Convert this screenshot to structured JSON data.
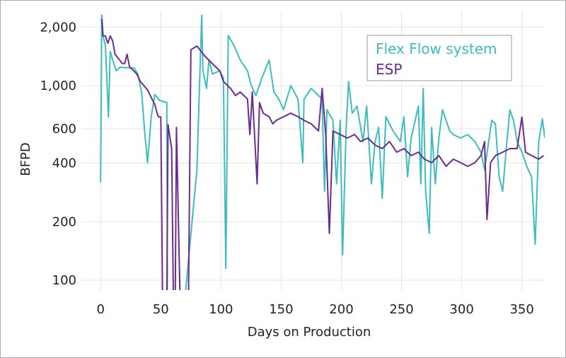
{
  "chart_data": {
    "type": "line",
    "title": "",
    "xlabel": "Days on Production",
    "ylabel": "BFPD",
    "xlim": [
      -16,
      369
    ],
    "ylim": [
      89,
      2430
    ],
    "yscale": "log",
    "grid": true,
    "legend_position": "top-right",
    "x_ticks": [
      0,
      50,
      100,
      150,
      200,
      250,
      300,
      350
    ],
    "x_tick_labels": [
      "0",
      "50",
      "100",
      "150",
      "200",
      "250",
      "300",
      "350"
    ],
    "y_ticks": [
      100,
      200,
      400,
      600,
      1000,
      2000
    ],
    "y_tick_labels": [
      "100",
      "200",
      "400",
      "600",
      "1,000",
      "2,000"
    ],
    "series": [
      {
        "name": "Flex Flow system",
        "color": "#3dbdbd",
        "points": [
          [
            0,
            318
          ],
          [
            1,
            2300
          ],
          [
            2,
            1812
          ],
          [
            4,
            1600
          ],
          [
            6.5,
            690
          ],
          [
            8,
            1500
          ],
          [
            11,
            1296
          ],
          [
            13,
            1192
          ],
          [
            16,
            1243
          ],
          [
            28,
            1230
          ],
          [
            31,
            1140
          ],
          [
            34,
            930
          ],
          [
            37,
            540
          ],
          [
            39,
            402
          ],
          [
            42,
            692
          ],
          [
            45,
            900
          ],
          [
            49,
            840
          ],
          [
            55,
            818
          ],
          [
            55.5,
            80
          ],
          [
            70,
            80
          ],
          [
            80,
            369
          ],
          [
            84,
            2300
          ],
          [
            85,
            1192
          ],
          [
            88,
            967
          ],
          [
            90,
            1352
          ],
          [
            93,
            1150
          ],
          [
            99,
            1192
          ],
          [
            102,
            1096
          ],
          [
            104,
            115
          ],
          [
            106,
            1812
          ],
          [
            111,
            1598
          ],
          [
            116,
            1352
          ],
          [
            122,
            1192
          ],
          [
            125,
            1008
          ],
          [
            129,
            889
          ],
          [
            134,
            1096
          ],
          [
            140,
            1352
          ],
          [
            144,
            927
          ],
          [
            148,
            853
          ],
          [
            152,
            752
          ],
          [
            158,
            1000
          ],
          [
            164,
            853
          ],
          [
            168,
            402
          ],
          [
            169,
            853
          ],
          [
            175,
            967
          ],
          [
            181,
            889
          ],
          [
            184,
            853
          ],
          [
            186,
            287
          ],
          [
            188,
            752
          ],
          [
            193,
            664
          ],
          [
            196,
            313
          ],
          [
            199,
            664
          ],
          [
            201,
            135
          ],
          [
            204,
            610
          ],
          [
            206,
            1050
          ],
          [
            209,
            722
          ],
          [
            213,
            785
          ],
          [
            218,
            516
          ],
          [
            221,
            785
          ],
          [
            225,
            313
          ],
          [
            228,
            516
          ],
          [
            231,
            610
          ],
          [
            234,
            264
          ],
          [
            237,
            692
          ],
          [
            243,
            585
          ],
          [
            249,
            516
          ],
          [
            252,
            692
          ],
          [
            255,
            340
          ],
          [
            258,
            538
          ],
          [
            264,
            785
          ],
          [
            266,
            313
          ],
          [
            268,
            967
          ],
          [
            270,
            287
          ],
          [
            273,
            174
          ],
          [
            275,
            610
          ],
          [
            278,
            313
          ],
          [
            281,
            538
          ],
          [
            284,
            752
          ],
          [
            287,
            664
          ],
          [
            290,
            585
          ],
          [
            293,
            561
          ],
          [
            299,
            538
          ],
          [
            305,
            561
          ],
          [
            311,
            516
          ],
          [
            316,
            455
          ],
          [
            319,
            369
          ],
          [
            325,
            664
          ],
          [
            328,
            636
          ],
          [
            331,
            340
          ],
          [
            334,
            287
          ],
          [
            337,
            475
          ],
          [
            340,
            752
          ],
          [
            343,
            664
          ],
          [
            346,
            516
          ],
          [
            350,
            455
          ],
          [
            354,
            385
          ],
          [
            358,
            340
          ],
          [
            361,
            153
          ],
          [
            364,
            516
          ],
          [
            367,
            675
          ],
          [
            369,
            540
          ]
        ]
      },
      {
        "name": "ESP",
        "color": "#6a2c91",
        "points": [
          [
            1,
            2200
          ],
          [
            2,
            1800
          ],
          [
            4,
            1800
          ],
          [
            6,
            1650
          ],
          [
            8,
            1800
          ],
          [
            10,
            1700
          ],
          [
            12,
            1450
          ],
          [
            14,
            1400
          ],
          [
            16,
            1350
          ],
          [
            18,
            1300
          ],
          [
            20,
            1300
          ],
          [
            22,
            1450
          ],
          [
            24,
            1250
          ],
          [
            27,
            1200
          ],
          [
            30,
            1150
          ],
          [
            33,
            1050
          ],
          [
            36,
            1000
          ],
          [
            39,
            950
          ],
          [
            42,
            870
          ],
          [
            45,
            800
          ],
          [
            47,
            720
          ],
          [
            48,
            692
          ],
          [
            50,
            690
          ],
          [
            51.5,
            80
          ],
          [
            55,
            80
          ],
          [
            56,
            630
          ],
          [
            59,
            475
          ],
          [
            60.5,
            80
          ],
          [
            62,
            80
          ],
          [
            63,
            610
          ],
          [
            66,
            80
          ],
          [
            73,
            80
          ],
          [
            75,
            1530
          ],
          [
            80,
            1598
          ],
          [
            87,
            1409
          ],
          [
            93,
            1296
          ],
          [
            99,
            1192
          ],
          [
            102,
            1051
          ],
          [
            105,
            1008
          ],
          [
            108,
            967
          ],
          [
            112,
            889
          ],
          [
            116,
            927
          ],
          [
            122,
            853
          ],
          [
            124,
            561
          ],
          [
            126,
            927
          ],
          [
            130,
            313
          ],
          [
            132,
            818
          ],
          [
            135,
            722
          ],
          [
            140,
            692
          ],
          [
            143,
            636
          ],
          [
            146,
            664
          ],
          [
            152,
            692
          ],
          [
            158,
            722
          ],
          [
            164,
            692
          ],
          [
            169,
            664
          ],
          [
            175,
            636
          ],
          [
            181,
            585
          ],
          [
            184,
            970
          ],
          [
            187,
            561
          ],
          [
            190,
            174
          ],
          [
            193,
            585
          ],
          [
            199,
            561
          ],
          [
            205,
            538
          ],
          [
            211,
            561
          ],
          [
            216,
            516
          ],
          [
            222,
            538
          ],
          [
            228,
            495
          ],
          [
            234,
            475
          ],
          [
            240,
            516
          ],
          [
            246,
            455
          ],
          [
            252,
            475
          ],
          [
            258,
            437
          ],
          [
            264,
            455
          ],
          [
            269,
            419
          ],
          [
            275,
            402
          ],
          [
            281,
            437
          ],
          [
            287,
            385
          ],
          [
            293,
            419
          ],
          [
            299,
            402
          ],
          [
            305,
            385
          ],
          [
            311,
            402
          ],
          [
            316,
            437
          ],
          [
            319,
            516
          ],
          [
            321,
            205
          ],
          [
            324,
            402
          ],
          [
            328,
            437
          ],
          [
            334,
            455
          ],
          [
            340,
            475
          ],
          [
            346,
            475
          ],
          [
            350,
            690
          ],
          [
            353,
            455
          ],
          [
            358,
            437
          ],
          [
            364,
            419
          ],
          [
            368,
            437
          ]
        ]
      }
    ]
  }
}
